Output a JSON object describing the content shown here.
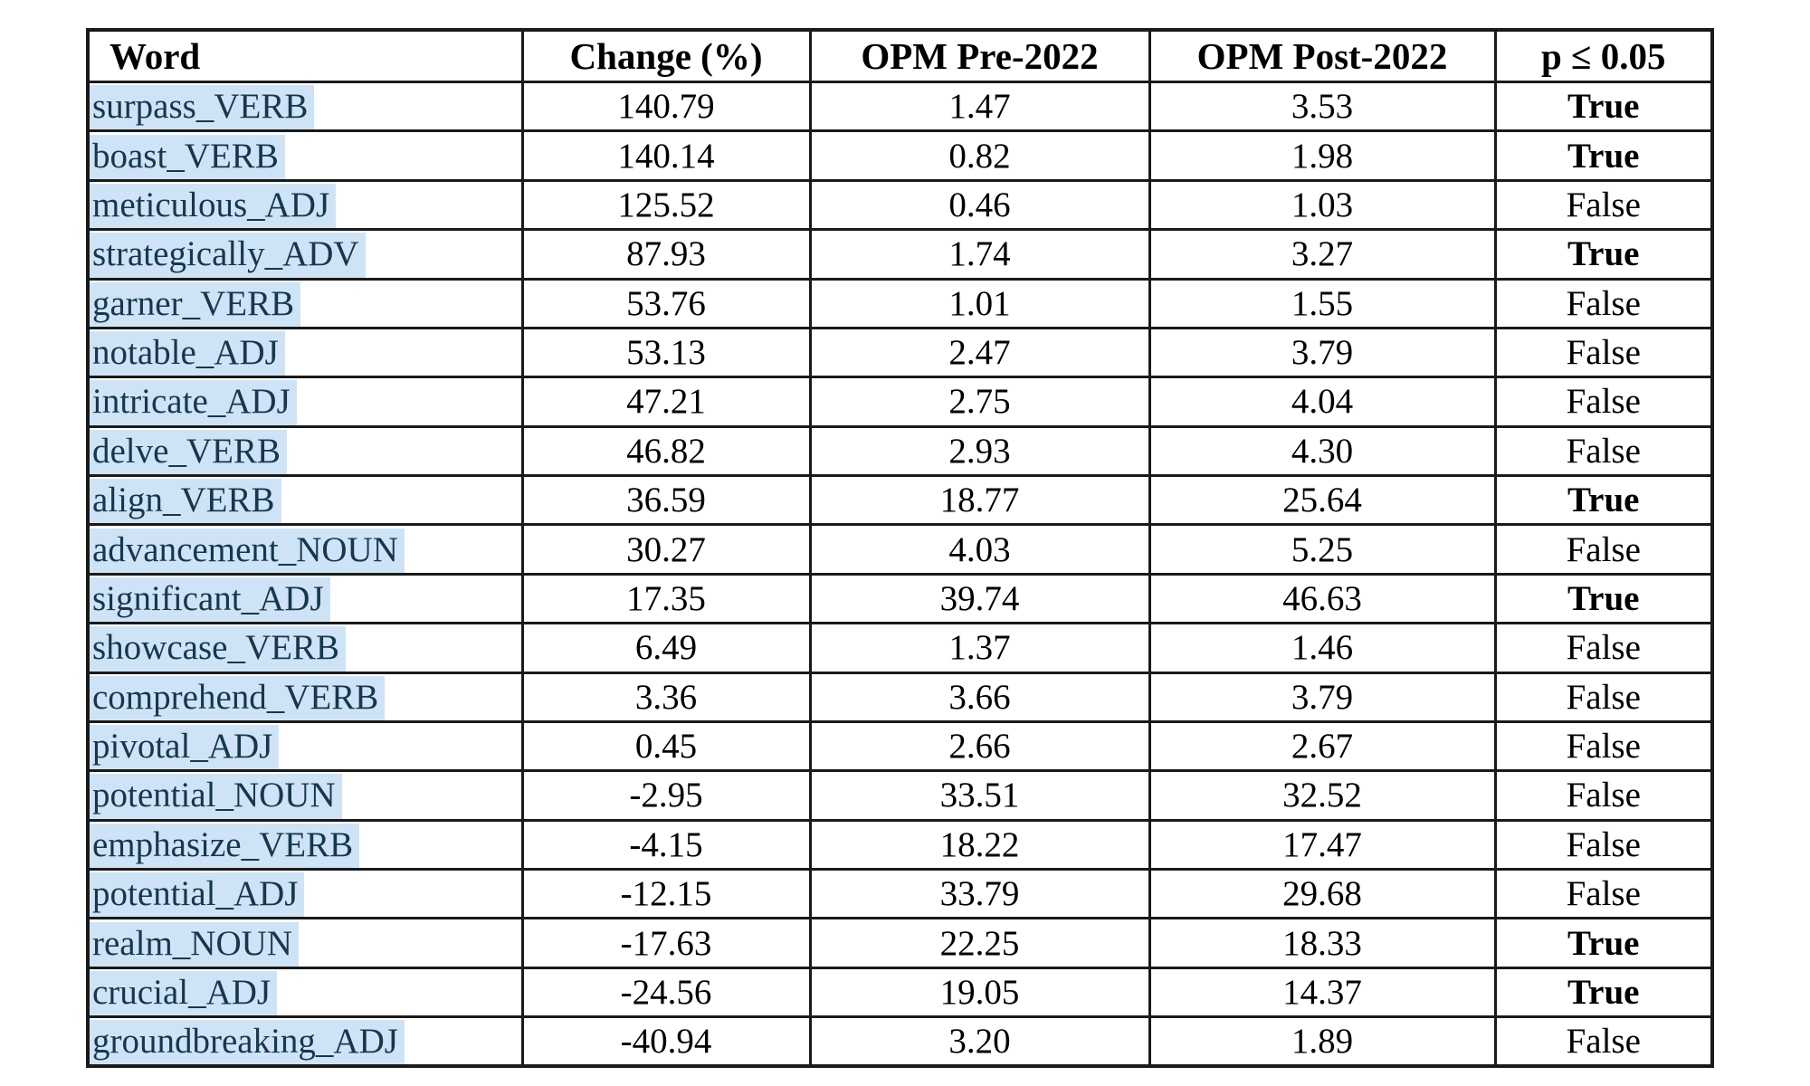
{
  "table": {
    "columns": [
      "Word",
      "Change (%)",
      "OPM Pre-2022",
      "OPM Post-2022",
      "p ≤ 0.05"
    ],
    "rows": [
      {
        "word": "surpass_VERB",
        "change": "140.79",
        "opm_pre": "1.47",
        "opm_post": "3.53",
        "p_significant": "True"
      },
      {
        "word": "boast_VERB",
        "change": "140.14",
        "opm_pre": "0.82",
        "opm_post": "1.98",
        "p_significant": "True"
      },
      {
        "word": "meticulous_ADJ",
        "change": "125.52",
        "opm_pre": "0.46",
        "opm_post": "1.03",
        "p_significant": "False"
      },
      {
        "word": "strategically_ADV",
        "change": "87.93",
        "opm_pre": "1.74",
        "opm_post": "3.27",
        "p_significant": "True"
      },
      {
        "word": "garner_VERB",
        "change": "53.76",
        "opm_pre": "1.01",
        "opm_post": "1.55",
        "p_significant": "False"
      },
      {
        "word": "notable_ADJ",
        "change": "53.13",
        "opm_pre": "2.47",
        "opm_post": "3.79",
        "p_significant": "False"
      },
      {
        "word": "intricate_ADJ",
        "change": "47.21",
        "opm_pre": "2.75",
        "opm_post": "4.04",
        "p_significant": "False"
      },
      {
        "word": "delve_VERB",
        "change": "46.82",
        "opm_pre": "2.93",
        "opm_post": "4.30",
        "p_significant": "False"
      },
      {
        "word": "align_VERB",
        "change": "36.59",
        "opm_pre": "18.77",
        "opm_post": "25.64",
        "p_significant": "True"
      },
      {
        "word": "advancement_NOUN",
        "change": "30.27",
        "opm_pre": "4.03",
        "opm_post": "5.25",
        "p_significant": "False"
      },
      {
        "word": "significant_ADJ",
        "change": "17.35",
        "opm_pre": "39.74",
        "opm_post": "46.63",
        "p_significant": "True"
      },
      {
        "word": "showcase_VERB",
        "change": "6.49",
        "opm_pre": "1.37",
        "opm_post": "1.46",
        "p_significant": "False"
      },
      {
        "word": "comprehend_VERB",
        "change": "3.36",
        "opm_pre": "3.66",
        "opm_post": "3.79",
        "p_significant": "False"
      },
      {
        "word": "pivotal_ADJ",
        "change": "0.45",
        "opm_pre": "2.66",
        "opm_post": "2.67",
        "p_significant": "False"
      },
      {
        "word": "potential_NOUN",
        "change": "-2.95",
        "opm_pre": "33.51",
        "opm_post": "32.52",
        "p_significant": "False"
      },
      {
        "word": "emphasize_VERB",
        "change": "-4.15",
        "opm_pre": "18.22",
        "opm_post": "17.47",
        "p_significant": "False"
      },
      {
        "word": "potential_ADJ",
        "change": "-12.15",
        "opm_pre": "33.79",
        "opm_post": "29.68",
        "p_significant": "False"
      },
      {
        "word": "realm_NOUN",
        "change": "-17.63",
        "opm_pre": "22.25",
        "opm_post": "18.33",
        "p_significant": "True"
      },
      {
        "word": "crucial_ADJ",
        "change": "-24.56",
        "opm_pre": "19.05",
        "opm_post": "14.37",
        "p_significant": "True"
      },
      {
        "word": "groundbreaking_ADJ",
        "change": "-40.94",
        "opm_pre": "3.20",
        "opm_post": "1.89",
        "p_significant": "False"
      }
    ]
  },
  "colors": {
    "word_highlight": "#cee4f6",
    "word_text": "#16374e",
    "table_border": "#1a1a1a",
    "value_text": "#000000",
    "background": "#ffffff"
  }
}
